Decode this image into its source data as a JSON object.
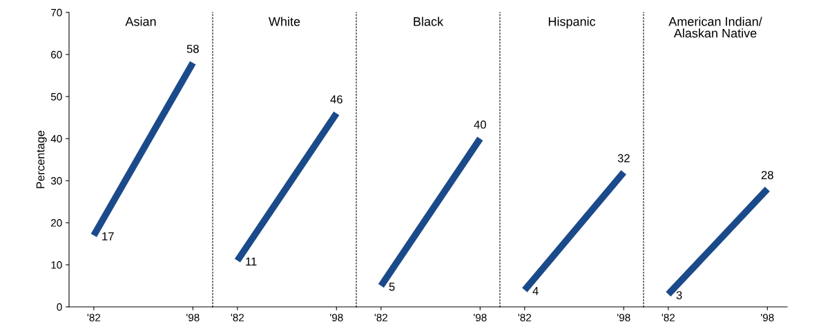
{
  "chart_data": [
    {
      "type": "line",
      "title": "Asian",
      "ylabel": "Percentage",
      "categories": [
        "'82",
        "'98"
      ],
      "values": [
        17,
        58
      ],
      "color": "#1b4a8a",
      "ylim": [
        0,
        70
      ],
      "yticks": [
        0,
        10,
        20,
        30,
        40,
        50,
        60,
        70
      ],
      "data_labels": true,
      "grid": false,
      "legend": false
    },
    {
      "type": "line",
      "title": "White",
      "categories": [
        "'82",
        "'98"
      ],
      "values": [
        11,
        46
      ],
      "color": "#1b4a8a",
      "ylim": [
        0,
        70
      ],
      "yticks": [
        0,
        10,
        20,
        30,
        40,
        50,
        60,
        70
      ],
      "tick_labels": "x",
      "data_labels": true,
      "grid": false,
      "legend": false
    },
    {
      "type": "line",
      "title": "Black",
      "categories": [
        "'82",
        "'98"
      ],
      "values": [
        5,
        40
      ],
      "color": "#1b4a8a",
      "ylim": [
        0,
        70
      ],
      "yticks": [
        0,
        10,
        20,
        30,
        40,
        50,
        60,
        70
      ],
      "tick_labels": "x",
      "data_labels": true,
      "grid": false,
      "legend": false
    },
    {
      "type": "line",
      "title": "Hispanic",
      "categories": [
        "'82",
        "'98"
      ],
      "values": [
        4,
        32
      ],
      "color": "#1b4a8a",
      "ylim": [
        0,
        70
      ],
      "yticks": [
        0,
        10,
        20,
        30,
        40,
        50,
        60,
        70
      ],
      "tick_labels": "x",
      "data_labels": true,
      "grid": false,
      "legend": false
    },
    {
      "type": "line",
      "title": "American Indian/\nAlaskan Native",
      "categories": [
        "'82",
        "'98"
      ],
      "values": [
        3,
        28
      ],
      "color": "#1b4a8a",
      "ylim": [
        0,
        70
      ],
      "yticks": [
        0,
        10,
        20,
        30,
        40,
        50,
        60,
        70
      ],
      "tick_labels": "x",
      "data_labels": true,
      "grid": false,
      "legend": false
    }
  ]
}
